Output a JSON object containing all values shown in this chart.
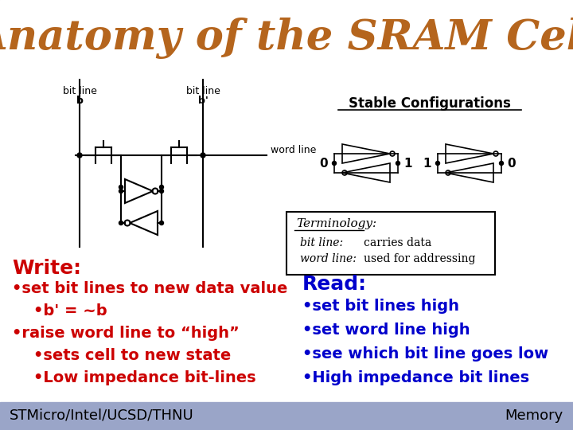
{
  "title": "Anatomy of the SRAM Cell",
  "title_color": "#b5651d",
  "title_fontsize": 38,
  "background_color": "#dde0ec",
  "footer_bg_color": "#9aa5c8",
  "footer_text_left": "STMicro/Intel/UCSD/THNU",
  "footer_text_right": "Memory",
  "footer_fontsize": 13,
  "write_label": "Write:",
  "write_color": "#cc0000",
  "write_fontsize": 18,
  "write_bullets": [
    "•set bit lines to new data value",
    "    •b' = ~b",
    "•raise word line to “high”",
    "    •sets cell to new state",
    "    •Low impedance bit-lines"
  ],
  "write_bullet_fontsize": 14,
  "read_label": "Read:",
  "read_color": "#0000cc",
  "read_fontsize": 18,
  "read_bullets": [
    "•set bit lines high",
    "•set word line high",
    "•see which bit line goes low",
    "•High impedance bit lines"
  ],
  "read_bullet_fontsize": 14,
  "stable_config_title": "Stable Configurations",
  "stable_config_fontsize": 12,
  "terminology_fontsize": 10
}
